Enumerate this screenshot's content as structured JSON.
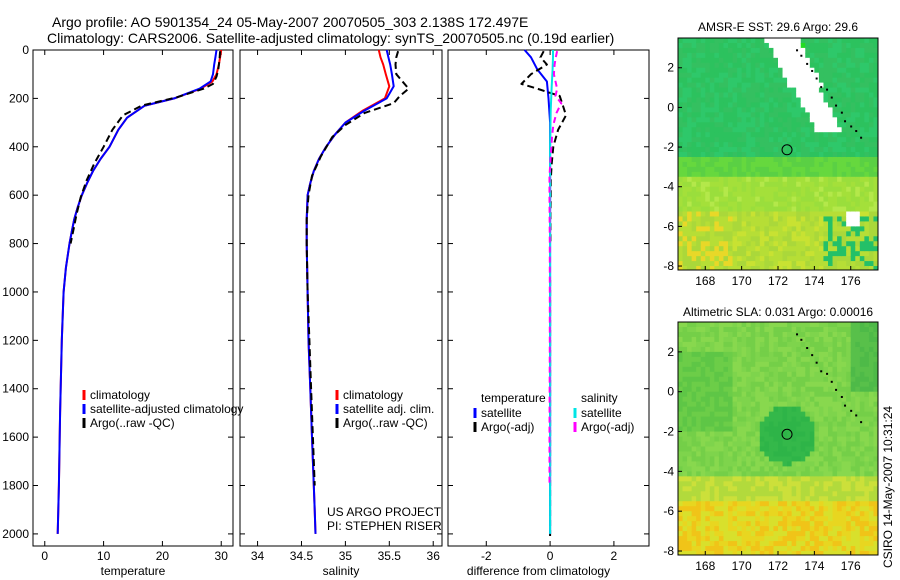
{
  "header": {
    "line1": "Argo profile: AO 5901354_24 05-May-2007 20070505_303 2.138S 172.497E",
    "line2": "Climatology: CARS2006. Satellite-adjusted climatology: synTS_20070505.nc (0.19d earlier)"
  },
  "side_label": "CSIRO 14-May-2007 10:31:24",
  "colors": {
    "climatology": "#ff0000",
    "satellite": "#0000ff",
    "argo": "#000000",
    "salinity_satellite": "#00e5e5",
    "salinity_argo": "#ff00ff"
  },
  "chart_data": [
    {
      "type": "line",
      "id": "temperature",
      "xlabel": "temperature",
      "ylabel": "",
      "xlim": [
        -2,
        32
      ],
      "ylim": [
        2050,
        0
      ],
      "x_ticks": [
        0,
        10,
        20,
        30
      ],
      "y_ticks": [
        0,
        200,
        400,
        600,
        800,
        1000,
        1200,
        1400,
        1600,
        1800,
        2000
      ],
      "legend": [
        "climatology",
        "satellite-adjusted climatology",
        "Argo(..raw -QC)"
      ],
      "series": [
        {
          "name": "climatology",
          "x": [
            30.0,
            29.8,
            29.6,
            29.2,
            28.5,
            26.5,
            22.0,
            17.0,
            14.0,
            12.5,
            11.0,
            9.5,
            8.2,
            7.2,
            6.3,
            5.6,
            5.0,
            4.6,
            4.2,
            3.6,
            3.2,
            2.9,
            2.6,
            2.4,
            2.2
          ],
          "y": [
            0,
            30,
            60,
            100,
            130,
            160,
            200,
            230,
            280,
            330,
            400,
            450,
            500,
            550,
            600,
            650,
            700,
            750,
            800,
            900,
            1000,
            1200,
            1500,
            1800,
            2000
          ]
        },
        {
          "name": "satellite-adjusted climatology",
          "x": [
            29.2,
            29.0,
            28.8,
            28.6,
            28.2,
            26.3,
            22.0,
            17.0,
            14.0,
            12.5,
            11.0,
            9.5,
            8.2,
            7.2,
            6.3,
            5.6,
            5.0,
            4.6,
            4.2,
            3.6,
            3.2,
            2.9,
            2.6,
            2.4,
            2.2
          ],
          "y": [
            0,
            30,
            60,
            100,
            130,
            160,
            200,
            230,
            280,
            330,
            400,
            450,
            500,
            550,
            600,
            650,
            700,
            750,
            800,
            900,
            1000,
            1200,
            1500,
            1800,
            2000
          ]
        },
        {
          "name": "Argo(..raw -QC)",
          "x": [
            29.8,
            29.7,
            29.5,
            29.2,
            28.6,
            27.0,
            22.5,
            16.5,
            13.3,
            11.5,
            10.0,
            8.4,
            7.1,
            6.1,
            5.4,
            4.9,
            4.4
          ],
          "y": [
            5,
            40,
            80,
            110,
            140,
            160,
            195,
            230,
            270,
            330,
            400,
            470,
            540,
            610,
            680,
            740,
            800
          ]
        }
      ]
    },
    {
      "type": "line",
      "id": "salinity",
      "xlabel": "salinity",
      "ylabel": "",
      "xlim": [
        33.8,
        36.1
      ],
      "ylim": [
        2050,
        0
      ],
      "x_ticks": [
        34,
        34.5,
        35,
        35.5,
        36
      ],
      "legend": [
        "climatology",
        "satellite adj. clim.",
        "Argo(..raw -QC)"
      ],
      "series": [
        {
          "name": "climatology",
          "x": [
            35.38,
            35.4,
            35.43,
            35.46,
            35.5,
            35.45,
            35.2,
            35.0,
            34.88,
            34.78,
            34.7,
            34.64,
            34.6,
            34.57,
            34.56,
            34.56,
            34.57,
            34.58,
            34.6,
            34.62,
            34.64,
            34.65,
            34.66
          ],
          "y": [
            0,
            30,
            60,
            100,
            150,
            200,
            250,
            300,
            350,
            400,
            450,
            500,
            550,
            600,
            700,
            800,
            1000,
            1200,
            1400,
            1600,
            1800,
            1900,
            2000
          ]
        },
        {
          "name": "satellite adj. clim.",
          "x": [
            35.47,
            35.49,
            35.51,
            35.53,
            35.55,
            35.47,
            35.22,
            35.0,
            34.88,
            34.78,
            34.7,
            34.64,
            34.6,
            34.57,
            34.56,
            34.56,
            34.57,
            34.58,
            34.6,
            34.62,
            34.64,
            34.65,
            34.66
          ],
          "y": [
            0,
            30,
            60,
            100,
            150,
            200,
            250,
            300,
            350,
            400,
            450,
            500,
            550,
            600,
            700,
            800,
            1000,
            1200,
            1400,
            1600,
            1800,
            1900,
            2000
          ]
        },
        {
          "name": "Argo(..raw -QC)",
          "x": [
            35.6,
            35.58,
            35.57,
            35.58,
            35.72,
            35.62,
            35.55,
            35.22,
            35.0,
            34.85,
            34.72,
            34.62,
            34.58,
            34.56,
            34.56,
            34.57,
            34.59,
            34.61,
            34.63,
            34.65
          ],
          "y": [
            5,
            30,
            60,
            100,
            160,
            190,
            220,
            260,
            310,
            360,
            440,
            520,
            600,
            700,
            800,
            1000,
            1200,
            1400,
            1600,
            1800
          ]
        }
      ]
    },
    {
      "type": "line",
      "id": "difference",
      "xlabel": "difference from climatology",
      "ylabel": "",
      "xlim": [
        -3.2,
        3.1
      ],
      "ylim": [
        2050,
        0
      ],
      "x_ticks": [
        -2,
        0,
        2
      ],
      "legend": {
        "temperature_heading": "temperature",
        "salinity_heading": "salinity",
        "temperature_items": [
          "satellite",
          "Argo(-adj)"
        ],
        "salinity_items": [
          "satellite",
          "Argo(-adj)"
        ]
      },
      "series": [
        {
          "name": "temperature satellite",
          "x": [
            -0.8,
            -0.6,
            -0.4,
            -0.1,
            -0.05,
            0.0,
            0.0,
            0.0
          ],
          "y": [
            0,
            30,
            80,
            130,
            200,
            300,
            500,
            2000
          ]
        },
        {
          "name": "temperature Argo(-adj)",
          "x": [
            -0.2,
            -0.3,
            -0.1,
            -0.6,
            -0.9,
            -0.4,
            0.3,
            0.4,
            0.5,
            0.25,
            0.1,
            0.05,
            0.02,
            0.02,
            0.01,
            0.01
          ],
          "y": [
            5,
            30,
            60,
            100,
            140,
            160,
            190,
            230,
            270,
            330,
            400,
            470,
            540,
            610,
            680,
            800
          ]
        },
        {
          "name": "salinity satellite",
          "x": [
            0.09,
            0.09,
            0.08,
            0.05,
            0.02,
            0.0,
            0.0,
            0.0
          ],
          "y": [
            0,
            30,
            80,
            150,
            250,
            400,
            700,
            2000
          ]
        },
        {
          "name": "salinity Argo(-adj)",
          "x": [
            0.22,
            0.18,
            0.14,
            0.12,
            0.22,
            0.17,
            0.35,
            0.2,
            0.1,
            0.06,
            0.02,
            -0.02,
            -0.02,
            -0.01,
            -0.01,
            -0.02,
            -0.02
          ],
          "y": [
            5,
            30,
            60,
            100,
            160,
            190,
            220,
            260,
            310,
            360,
            440,
            520,
            600,
            800,
            1200,
            1600,
            1800
          ]
        }
      ]
    },
    {
      "type": "heatmap",
      "id": "sst_map",
      "title": "AMSR-E SST: 29.6 Argo: 29.6",
      "xlim": [
        166.5,
        177.5
      ],
      "ylim": [
        -8.2,
        3.5
      ],
      "x_ticks": [
        168,
        170,
        172,
        174,
        176
      ],
      "y_ticks": [
        2,
        0,
        -2,
        -4,
        -6,
        -8
      ],
      "marker": {
        "lon": 172.497,
        "lat": -2.138
      }
    },
    {
      "type": "heatmap",
      "id": "sla_map",
      "title": "Altimetric SLA: 0.031 Argo: 0.00016",
      "xlim": [
        166.5,
        177.5
      ],
      "ylim": [
        -8.2,
        3.5
      ],
      "x_ticks": [
        168,
        170,
        172,
        174,
        176
      ],
      "y_ticks": [
        2,
        0,
        -2,
        -4,
        -6,
        -8
      ],
      "marker": {
        "lon": 172.497,
        "lat": -2.138
      }
    }
  ],
  "footer_note": {
    "line1": "US ARGO PROJECT",
    "line2": "PI: STEPHEN RISER"
  }
}
